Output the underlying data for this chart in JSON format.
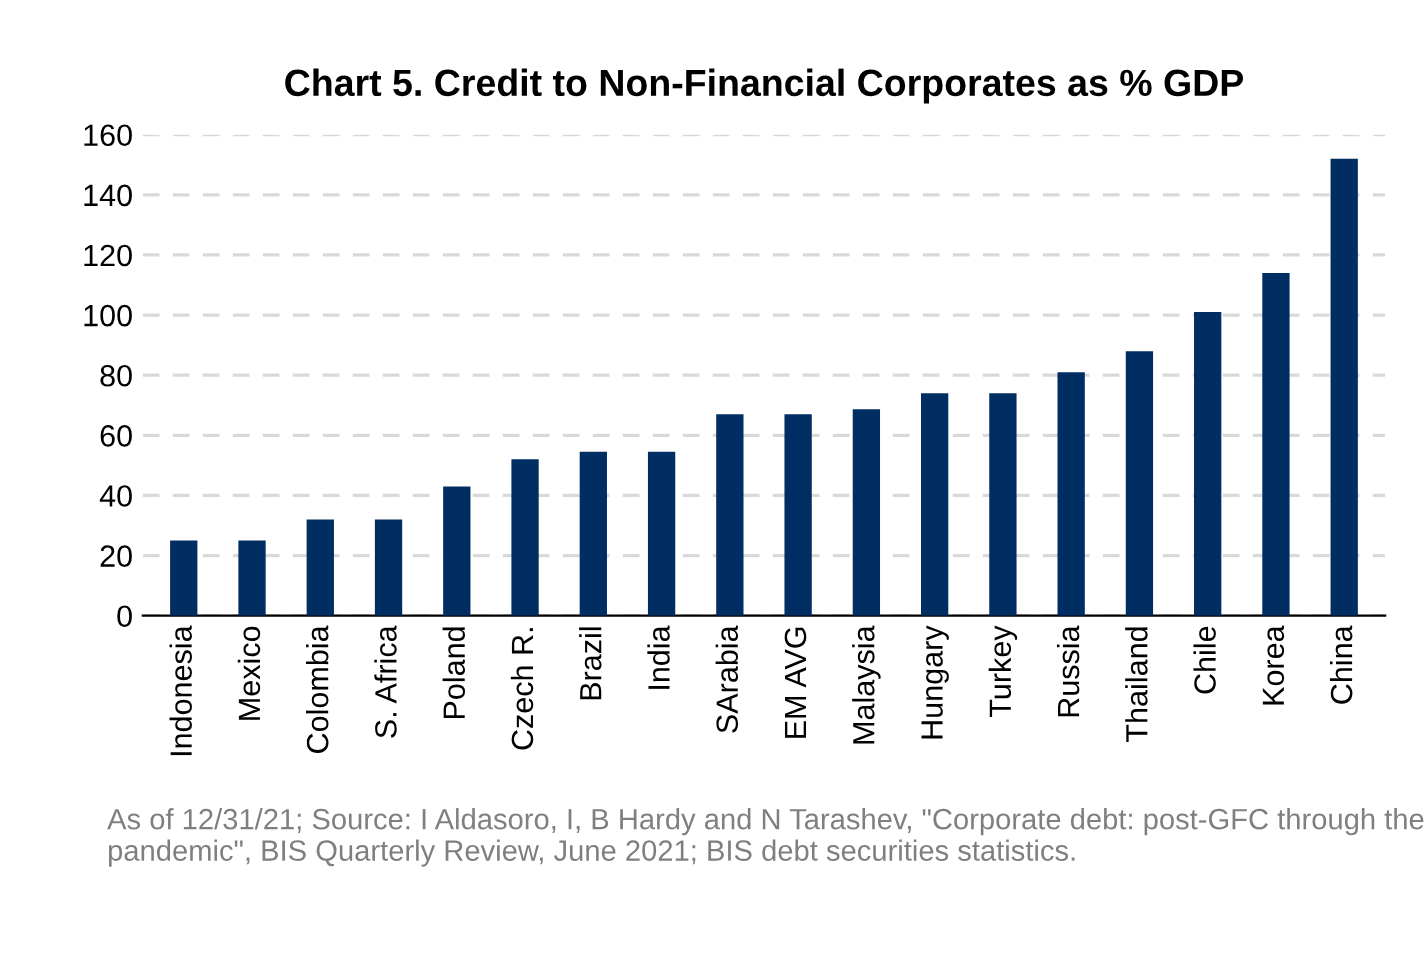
{
  "chart_data": {
    "type": "bar",
    "title": "Chart 5. Credit to Non-Financial Corporates as % GDP",
    "categories": [
      "Indonesia",
      "Mexico",
      "Colombia",
      "S. Africa",
      "Poland",
      "Czech R.",
      "Brazil",
      "India",
      "SArabia",
      "EM AVG",
      "Malaysia",
      "Hungary",
      "Turkey",
      "Russia",
      "Thailand",
      "Chile",
      "Korea",
      "China"
    ],
    "values": [
      25,
      25,
      32,
      32,
      43,
      52,
      54.5,
      54.5,
      67,
      67,
      68.7,
      74,
      74,
      81,
      88,
      101,
      114,
      152
    ],
    "color": "#002d62",
    "ylim": [
      0,
      160
    ],
    "yticks": [
      0,
      20,
      40,
      60,
      80,
      100,
      120,
      140,
      160
    ],
    "grid": "y",
    "annotations": [
      "As of 12/31/21; Source: I Aldasoro, I, B Hardy and N Tarashev, \"Corporate debt: post-GFC through the pandemic\", BIS Quarterly Review, June 2021; BIS debt securities statistics."
    ]
  }
}
